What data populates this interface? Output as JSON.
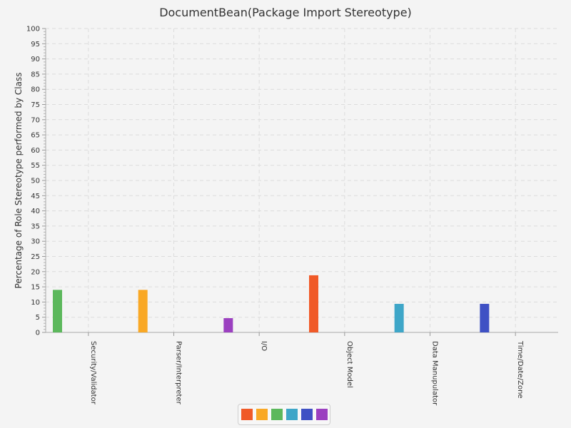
{
  "chart_data": {
    "type": "bar",
    "title": "DocumentBean(Package Import Stereotype)",
    "xlabel": "",
    "ylabel": "Percentage of Role Stereotype performed by Class",
    "ylim": [
      0,
      100
    ],
    "y_major_step": 5,
    "y_minor_per_major": 4,
    "grid": true,
    "legend_position": "bottom",
    "categories": [
      "Security/Validator",
      "Parser/Interpreter",
      "I/O",
      "Object Model",
      "Data Manupulator",
      "Time/Date/Zone"
    ],
    "values": [
      14,
      14,
      4.7,
      18.8,
      9.4,
      9.4
    ],
    "colors": [
      "#5cb85c",
      "#f9a825",
      "#9b40c0",
      "#f05a28",
      "#3ea6c8",
      "#3f51c4"
    ],
    "legend_colors": [
      "#f05a28",
      "#f9a825",
      "#5cb85c",
      "#3ea6c8",
      "#3f51c4",
      "#9b40c0"
    ]
  }
}
